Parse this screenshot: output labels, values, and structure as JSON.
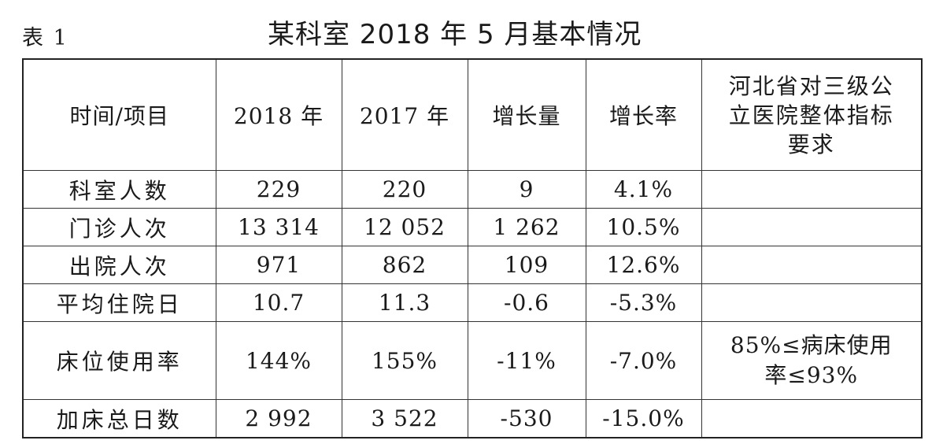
{
  "table_label": "表 1",
  "title": "某科室 2018 年 5 月基本情况",
  "headers": [
    "时间/项目",
    "2018 年",
    "2017 年",
    "增长量",
    "增长率",
    "河北省对三级公立医院整体指标要求"
  ],
  "rows": [
    {
      "item": "科室人数",
      "y2018": "229",
      "y2017": "220",
      "increase": "9",
      "rate": "4.1%",
      "requirement": ""
    },
    {
      "item": "门诊人次",
      "y2018": "13 314",
      "y2017": "12 052",
      "increase": "1 262",
      "rate": "10.5%",
      "requirement": ""
    },
    {
      "item": "出院人次",
      "y2018": "971",
      "y2017": "862",
      "increase": "109",
      "rate": "12.6%",
      "requirement": ""
    },
    {
      "item": "平均住院日",
      "y2018": "10.7",
      "y2017": "11.3",
      "increase": "-0.6",
      "rate": "-5.3%",
      "requirement": ""
    },
    {
      "item": "床位使用率",
      "y2018": "144%",
      "y2017": "155%",
      "increase": "-11%",
      "rate": "-7.0%",
      "requirement": "85%≤病床使用率≤93%"
    },
    {
      "item": "加床总日数",
      "y2018": "2 992",
      "y2017": "3 522",
      "increase": "-530",
      "rate": "-15.0%",
      "requirement": ""
    }
  ]
}
